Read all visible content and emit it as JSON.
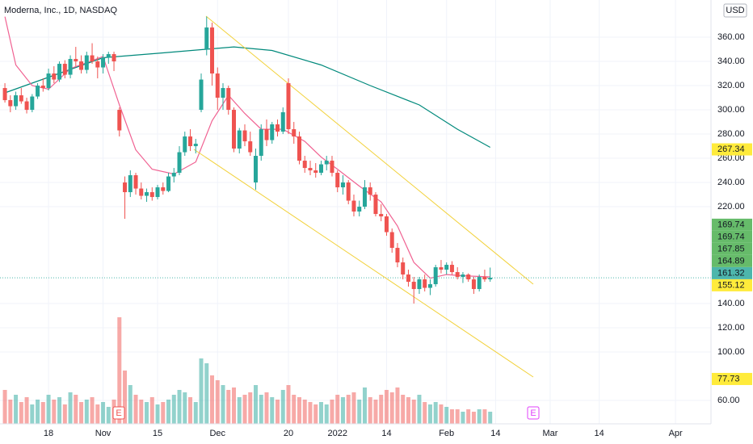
{
  "chart_data": {
    "type": "candlestick",
    "title": "Moderna, Inc., 1D, NASDAQ",
    "currency": "USD",
    "up_color": "#26a69a",
    "down_color": "#ef5350",
    "grid": true,
    "xlim": [
      -8.9,
      121.5
    ],
    "ylim": [
      40.7,
      390.7
    ],
    "xticks": [
      {
        "value": 0,
        "label": "18"
      },
      {
        "value": 10,
        "label": "Nov"
      },
      {
        "value": 20,
        "label": "15"
      },
      {
        "value": 31,
        "label": "Dec"
      },
      {
        "value": 44,
        "label": "20"
      },
      {
        "value": 53,
        "label": "2022"
      },
      {
        "value": 62,
        "label": "14"
      },
      {
        "value": 73,
        "label": "Feb"
      },
      {
        "value": 82,
        "label": "14"
      },
      {
        "value": 92,
        "label": "Mar"
      },
      {
        "value": 101,
        "label": "14"
      },
      {
        "value": 115,
        "label": "Apr"
      }
    ],
    "yticks": [
      {
        "value": 360,
        "label": "360.00"
      },
      {
        "value": 340,
        "label": "340.00"
      },
      {
        "value": 320,
        "label": "320.00"
      },
      {
        "value": 300,
        "label": "300.00"
      },
      {
        "value": 280,
        "label": "280.00"
      },
      {
        "value": 260,
        "label": "260.00"
      },
      {
        "value": 240,
        "label": "240.00"
      },
      {
        "value": 220,
        "label": "220.00"
      },
      {
        "value": 140,
        "label": "140.00"
      },
      {
        "value": 120,
        "label": "120.00"
      },
      {
        "value": 100,
        "label": "100.00"
      },
      {
        "value": 60,
        "label": "60.00"
      }
    ],
    "x": [
      -8,
      -7,
      -6,
      -5,
      -4,
      -3,
      -2,
      -1,
      0,
      1,
      2,
      3,
      4,
      5,
      6,
      7,
      8,
      9,
      10,
      11,
      12,
      13,
      14,
      15,
      16,
      17,
      18,
      19,
      20,
      21,
      22,
      23,
      24,
      25,
      26,
      27,
      28,
      29,
      30,
      31,
      32,
      33,
      34,
      35,
      36,
      37,
      38,
      39,
      40,
      41,
      42,
      43,
      44,
      45,
      46,
      47,
      48,
      49,
      50,
      51,
      52,
      53,
      54,
      55,
      56,
      57,
      58,
      59,
      60,
      61,
      62,
      63,
      64,
      65,
      66,
      67,
      68,
      69,
      70,
      71,
      72,
      73,
      74,
      75,
      76,
      77,
      78,
      79,
      80,
      81
    ],
    "open": [
      318,
      308,
      303,
      312,
      307,
      300,
      311,
      320,
      318,
      330,
      325,
      338,
      329,
      342,
      340,
      333,
      345,
      340,
      335,
      343,
      346,
      300,
      240,
      232,
      246,
      235,
      229,
      232,
      228,
      236,
      233,
      245,
      248,
      265,
      278,
      270,
      300,
      350,
      368,
      330,
      310,
      318,
      300,
      268,
      283,
      274,
      240,
      262,
      284,
      275,
      288,
      282,
      322,
      284,
      278,
      258,
      252,
      250,
      248,
      255,
      258,
      248,
      236,
      240,
      225,
      216,
      220,
      236,
      230,
      214,
      212,
      199,
      186,
      174,
      164,
      158,
      152,
      160,
      153,
      156,
      170,
      168,
      172,
      166,
      162,
      164,
      160,
      152,
      162,
      160
    ],
    "high": [
      322,
      312,
      315,
      318,
      310,
      313,
      322,
      326,
      334,
      336,
      340,
      341,
      345,
      352,
      345,
      348,
      355,
      344,
      346,
      348,
      348,
      302,
      245,
      250,
      248,
      240,
      235,
      236,
      238,
      240,
      248,
      252,
      270,
      282,
      284,
      276,
      330,
      377,
      372,
      335,
      322,
      320,
      302,
      285,
      288,
      282,
      268,
      288,
      292,
      290,
      292,
      302,
      326,
      290,
      282,
      262,
      258,
      256,
      258,
      262,
      262,
      250,
      246,
      242,
      230,
      225,
      242,
      240,
      232,
      222,
      214,
      202,
      190,
      178,
      168,
      162,
      162,
      164,
      160,
      172,
      176,
      174,
      175,
      170,
      166,
      165,
      162,
      164,
      168,
      169.74
    ],
    "low": [
      306,
      298,
      300,
      305,
      297,
      298,
      309,
      315,
      316,
      322,
      323,
      326,
      326,
      336,
      330,
      330,
      338,
      326,
      330,
      338,
      332,
      278,
      210,
      228,
      230,
      226,
      224,
      225,
      226,
      230,
      232,
      240,
      246,
      262,
      266,
      264,
      298,
      345,
      320,
      300,
      300,
      296,
      265,
      264,
      270,
      262,
      234,
      258,
      270,
      272,
      278,
      280,
      280,
      272,
      255,
      248,
      246,
      244,
      246,
      250,
      245,
      232,
      230,
      222,
      212,
      212,
      218,
      225,
      212,
      208,
      196,
      182,
      170,
      160,
      154,
      140,
      148,
      150,
      147,
      154,
      165,
      164,
      164,
      160,
      157,
      158,
      148,
      150,
      158,
      158
    ],
    "close": [
      308,
      303,
      312,
      307,
      300,
      311,
      320,
      318,
      330,
      325,
      338,
      329,
      342,
      340,
      333,
      345,
      340,
      335,
      343,
      346,
      340,
      283,
      232,
      246,
      235,
      229,
      232,
      228,
      236,
      233,
      245,
      248,
      265,
      278,
      270,
      272,
      325,
      368,
      330,
      310,
      318,
      300,
      268,
      283,
      274,
      265,
      262,
      284,
      275,
      288,
      282,
      298,
      284,
      278,
      258,
      252,
      250,
      248,
      255,
      258,
      248,
      236,
      240,
      225,
      216,
      220,
      236,
      230,
      214,
      212,
      199,
      186,
      174,
      164,
      158,
      152,
      160,
      153,
      156,
      170,
      168,
      172,
      166,
      162,
      164,
      160,
      152,
      162,
      160,
      161.32
    ],
    "volume": [
      14,
      10,
      12,
      9,
      11,
      8,
      10,
      9,
      12,
      10,
      11,
      8,
      13,
      12,
      9,
      10,
      11,
      8,
      9,
      7,
      10,
      44,
      22,
      16,
      12,
      10,
      9,
      11,
      8,
      9,
      10,
      12,
      14,
      13,
      11,
      9,
      27,
      25,
      20,
      18,
      16,
      14,
      15,
      11,
      12,
      13,
      16,
      12,
      13,
      11,
      10,
      14,
      16,
      12,
      11,
      10,
      9,
      8,
      9,
      8,
      10,
      12,
      11,
      12,
      13,
      10,
      15,
      11,
      10,
      12,
      14,
      13,
      15,
      12,
      11,
      10,
      12,
      9,
      8,
      9,
      8,
      7,
      6,
      6,
      5,
      6,
      5,
      6,
      6,
      5
    ],
    "lines": [
      {
        "color": "#00897b",
        "x": [
          -8,
          10,
          21,
          34,
          41,
          50,
          59,
          68,
          75,
          81
        ],
        "values": [
          314,
          343,
          347,
          352,
          349,
          337,
          320,
          304,
          284,
          269
        ]
      },
      {
        "color": "#f06292",
        "x": [
          -8,
          -6,
          -3,
          0,
          4,
          10,
          13,
          16,
          19,
          23,
          27,
          30,
          33,
          36,
          39,
          43,
          47,
          50,
          53,
          57,
          61,
          64,
          67,
          70,
          73,
          76,
          81
        ],
        "values": [
          377,
          337,
          320,
          317,
          334,
          344,
          304,
          267,
          251,
          247,
          257,
          291,
          312,
          297,
          284,
          284,
          274,
          261,
          251,
          237,
          224,
          204,
          174,
          161,
          164,
          163,
          162
        ]
      }
    ],
    "price_labels": [
      {
        "value": 267.34,
        "color": "#ffeb3b"
      },
      {
        "value": 169.74,
        "color": "#66bb6a"
      },
      {
        "value": 169.74,
        "color": "#66bb6a"
      },
      {
        "value": 167.85,
        "color": "#66bb6a"
      },
      {
        "value": 164.89,
        "color": "#66bb6a"
      },
      {
        "value": 161.32,
        "color": "#4db6ac"
      },
      {
        "value": 155.12,
        "color": "#ffeb3b"
      },
      {
        "value": 77.73,
        "color": "#ffeb3b"
      }
    ],
    "earnings_markers": [
      {
        "label": "E"
      },
      {
        "label": "E"
      }
    ]
  }
}
